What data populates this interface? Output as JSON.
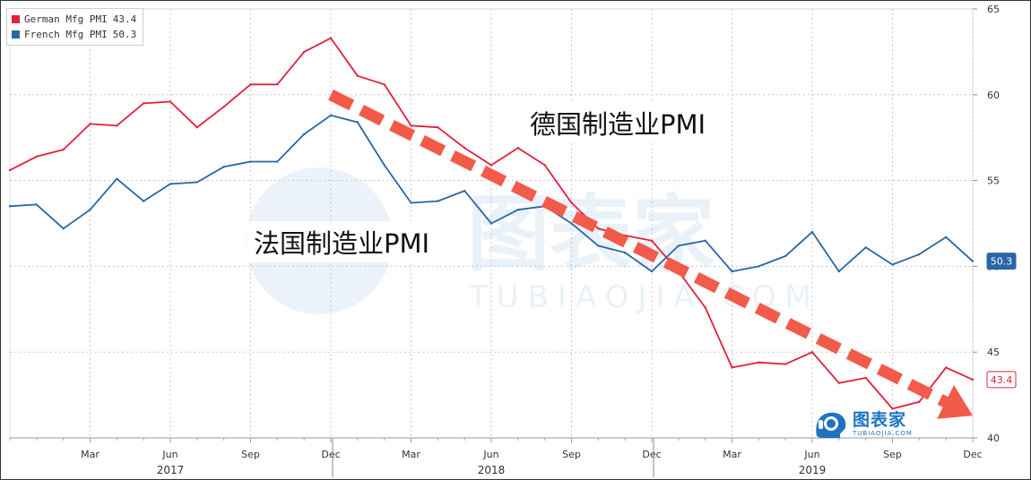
{
  "legend": {
    "series": [
      {
        "name": "German Mfg PMI",
        "last": "43.4",
        "color": "#e0203c"
      },
      {
        "name": "French Mfg PMI",
        "last": "50.3",
        "color": "#2a66a4"
      }
    ]
  },
  "annotations": {
    "german": "德国制造业PMI",
    "french": "法国制造业PMI",
    "trend_arrow_color": "#f25a4a"
  },
  "watermark": {
    "cn": "图表家",
    "en": "TUBIAOJIA.COM"
  },
  "logo": {
    "cn": "图表家",
    "en": "TUBIAOJIA.COM",
    "icon": "tubiaojia-head-icon"
  },
  "chart_data": {
    "type": "line",
    "x": [
      "2016-12",
      "2017-01",
      "2017-02",
      "2017-03",
      "2017-04",
      "2017-05",
      "2017-06",
      "2017-07",
      "2017-08",
      "2017-09",
      "2017-10",
      "2017-11",
      "2017-12",
      "2018-01",
      "2018-02",
      "2018-03",
      "2018-04",
      "2018-05",
      "2018-06",
      "2018-07",
      "2018-08",
      "2018-09",
      "2018-10",
      "2018-11",
      "2018-12",
      "2019-01",
      "2019-02",
      "2019-03",
      "2019-04",
      "2019-05",
      "2019-06",
      "2019-07",
      "2019-08",
      "2019-09",
      "2019-10",
      "2019-11",
      "2019-12"
    ],
    "series": [
      {
        "name": "German Mfg PMI",
        "color": "#e0203c",
        "values": [
          55.6,
          56.4,
          56.8,
          58.3,
          58.2,
          59.5,
          59.6,
          58.1,
          59.3,
          60.6,
          60.6,
          62.5,
          63.3,
          61.1,
          60.6,
          58.2,
          58.1,
          56.9,
          55.9,
          56.9,
          55.9,
          53.7,
          52.2,
          51.8,
          51.5,
          49.7,
          47.6,
          44.1,
          44.4,
          44.3,
          45.0,
          43.2,
          43.5,
          41.7,
          42.1,
          44.1,
          43.4
        ]
      },
      {
        "name": "French Mfg PMI",
        "color": "#2a66a4",
        "values": [
          53.5,
          53.6,
          52.2,
          53.3,
          55.1,
          53.8,
          54.8,
          54.9,
          55.8,
          56.1,
          56.1,
          57.7,
          58.8,
          58.4,
          55.9,
          53.7,
          53.8,
          54.4,
          52.5,
          53.3,
          53.5,
          52.5,
          51.2,
          50.8,
          49.7,
          51.2,
          51.5,
          49.7,
          50.0,
          50.6,
          52.0,
          49.7,
          51.1,
          50.1,
          50.7,
          51.7,
          50.3
        ]
      }
    ],
    "ylim": [
      40,
      65
    ],
    "yticks": [
      40,
      45,
      50,
      55,
      60,
      65
    ],
    "x_tick_labels": [
      {
        "i": 3,
        "label": "Mar"
      },
      {
        "i": 6,
        "label": "Jun"
      },
      {
        "i": 9,
        "label": "Sep"
      },
      {
        "i": 12,
        "label": "Dec"
      },
      {
        "i": 15,
        "label": "Mar"
      },
      {
        "i": 18,
        "label": "Jun"
      },
      {
        "i": 21,
        "label": "Sep"
      },
      {
        "i": 24,
        "label": "Dec"
      },
      {
        "i": 27,
        "label": "Mar"
      },
      {
        "i": 30,
        "label": "Jun"
      },
      {
        "i": 33,
        "label": "Sep"
      },
      {
        "i": 36,
        "label": "Dec"
      }
    ],
    "year_labels": [
      {
        "i": 6,
        "label": "2017"
      },
      {
        "i": 18,
        "label": "2018"
      },
      {
        "i": 30,
        "label": "2019"
      }
    ],
    "year_separators": [
      12,
      24
    ],
    "last_value_tags": [
      {
        "series": 1,
        "label": "50.3",
        "color": "#2a66a4"
      },
      {
        "series": 0,
        "label": "43.4",
        "color": "#e0203c"
      }
    ],
    "trend_arrow": {
      "from": {
        "i": 12,
        "y": 60.0
      },
      "to": {
        "i": 36,
        "y": 41.3
      }
    },
    "grid": true,
    "legend_position": "top-left"
  }
}
